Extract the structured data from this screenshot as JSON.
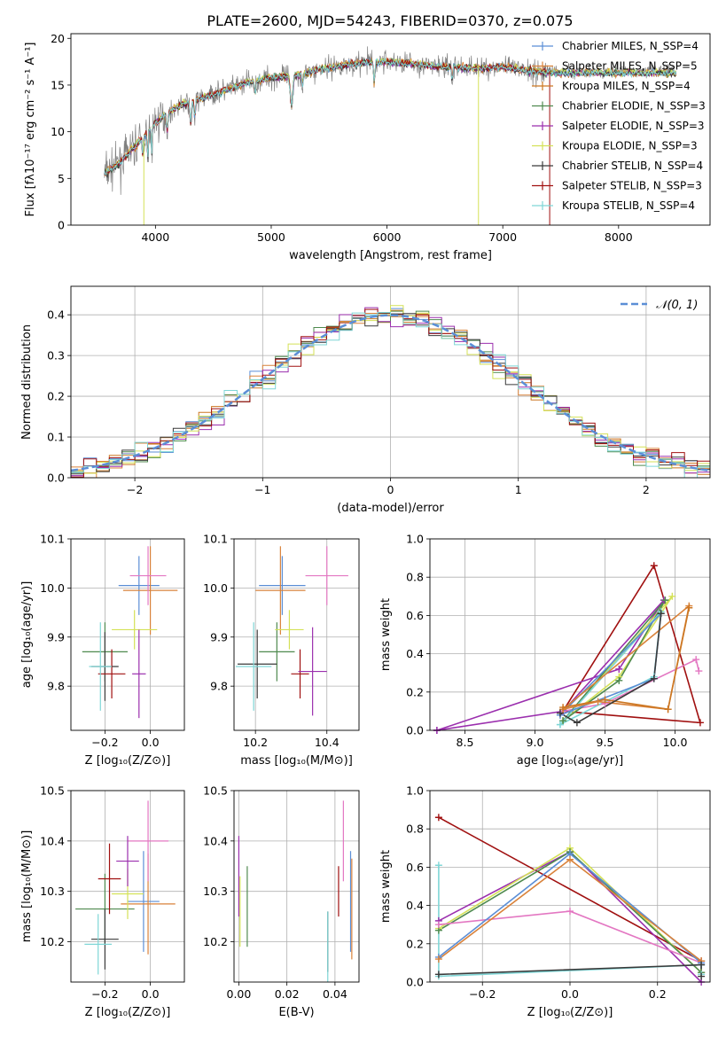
{
  "title": "PLATE=2600, MJD=54243, FIBERID=0370, z=0.075",
  "colors": {
    "Chabrier MILES": "#5b8ed6",
    "Salpeter MILES": "#d9823a",
    "Kroupa MILES": "#cc7722",
    "Chabrier ELODIE": "#4f8a4f",
    "Salpeter ELODIE": "#9b2fae",
    "Kroupa ELODIE": "#d4e157",
    "Chabrier STELIB": "#3a3a3a",
    "Salpeter STELIB": "#a01010",
    "Kroupa STELIB": "#7fd6d6",
    "data": "#808080",
    "pink": "#e377c2",
    "olive": "#bcbd22",
    "normal": "#5b8ed6"
  },
  "chart_data": [
    {
      "type": "line",
      "title": "PLATE=2600, MJD=54243, FIBERID=0370, z=0.075",
      "xlabel": "wavelength [Angstrom, rest frame]",
      "ylabel": "Flux [fλ10⁻¹⁷ erg cm⁻² s⁻¹ A⁻¹]",
      "xlim": [
        3270,
        8790
      ],
      "ylim": [
        0,
        20.5
      ],
      "xticks": [
        "4000",
        "5000",
        "6000",
        "7000",
        "8000"
      ],
      "yticks": [
        "0",
        "5",
        "10",
        "15",
        "20"
      ],
      "legend": "top-right",
      "series": [
        {
          "name": "Chabrier MILES, N_SSP=4",
          "color": "#5b8ed6"
        },
        {
          "name": "Salpeter MILES, N_SSP=5",
          "color": "#d9823a"
        },
        {
          "name": "Kroupa MILES, N_SSP=4",
          "color": "#cc7722"
        },
        {
          "name": "Chabrier ELODIE, N_SSP=3",
          "color": "#4f8a4f"
        },
        {
          "name": "Salpeter ELODIE, N_SSP=3",
          "color": "#9b2fae"
        },
        {
          "name": "Kroupa ELODIE, N_SSP=3",
          "color": "#d4e157"
        },
        {
          "name": "Chabrier STELIB, N_SSP=4",
          "color": "#3a3a3a"
        },
        {
          "name": "Salpeter STELIB, N_SSP=3",
          "color": "#a01010"
        },
        {
          "name": "Kroupa STELIB, N_SSP=4",
          "color": "#7fd6d6"
        }
      ],
      "continuum": {
        "x": [
          3560,
          3700,
          3900,
          4000,
          4200,
          4400,
          4600,
          4800,
          5000,
          5200,
          5400,
          5600,
          5800,
          6000,
          6200,
          6400,
          6600,
          6800,
          7000,
          7200,
          7400
        ],
        "y": [
          5.5,
          6.8,
          9.5,
          11.0,
          12.8,
          13.6,
          14.4,
          15.3,
          15.8,
          16.0,
          16.6,
          17.1,
          17.4,
          17.5,
          17.3,
          17.0,
          16.9,
          16.8,
          16.9,
          16.6,
          16.3
        ]
      }
    },
    {
      "type": "bar",
      "xlabel": "(data-model)/error",
      "ylabel": "Normed distribution",
      "xlim": [
        -2.5,
        2.5
      ],
      "ylim": [
        0,
        0.47
      ],
      "xticks": [
        "−2",
        "−1",
        "0",
        "1",
        "2"
      ],
      "yticks": [
        "0.0",
        "0.1",
        "0.2",
        "0.3",
        "0.4"
      ],
      "legend": "top-right",
      "legend_label": "𝒩(0, 1)",
      "bin_width": 0.1
    },
    {
      "type": "scatter",
      "xlabel": "Z [log₁₀(Z/Z⊙)]",
      "ylabel": "age  [log₁₀(age/yr)]",
      "xlim": [
        -0.35,
        0.15
      ],
      "ylim": [
        9.71,
        10.1
      ],
      "xticks": [
        "−0.2",
        "0.0"
      ],
      "yticks": [
        "9.8",
        "9.9",
        "10.0",
        "10.1"
      ],
      "points": [
        {
          "x": -0.05,
          "y": 10.005,
          "xerr": 0.09,
          "yerr": 0.06,
          "color": "#5b8ed6"
        },
        {
          "x": 0.0,
          "y": 9.995,
          "xerr": 0.12,
          "yerr": 0.09,
          "color": "#d9823a"
        },
        {
          "x": -0.01,
          "y": 10.025,
          "xerr": 0.08,
          "yerr": 0.06,
          "color": "#e377c2"
        },
        {
          "x": -0.2,
          "y": 9.87,
          "xerr": 0.1,
          "yerr": 0.06,
          "color": "#4f8a4f"
        },
        {
          "x": -0.07,
          "y": 9.915,
          "xerr": 0.1,
          "yerr": 0.04,
          "color": "#d4e157"
        },
        {
          "x": -0.2,
          "y": 9.84,
          "xerr": 0.06,
          "yerr": 0.07,
          "color": "#3a3a3a"
        },
        {
          "x": -0.17,
          "y": 9.825,
          "xerr": 0.06,
          "yerr": 0.05,
          "color": "#a01010"
        },
        {
          "x": -0.05,
          "y": 9.825,
          "xerr": 0.03,
          "yerr": 0.09,
          "color": "#9b2fae"
        },
        {
          "x": -0.22,
          "y": 9.84,
          "xerr": 0.05,
          "yerr": 0.09,
          "color": "#7fd6d6"
        }
      ]
    },
    {
      "type": "scatter",
      "xlabel": "mass [log₁₀(M/M⊙)]",
      "xlim": [
        10.14,
        10.49
      ],
      "ylim": [
        9.71,
        10.1
      ],
      "xticks": [
        "10.2",
        "10.4"
      ],
      "yticks": [
        "9.8",
        "9.9",
        "10.0",
        "10.1"
      ],
      "points": [
        {
          "x": 10.275,
          "y": 10.005,
          "xerr": 0.065,
          "yerr": 0.06,
          "color": "#5b8ed6"
        },
        {
          "x": 10.27,
          "y": 9.995,
          "xerr": 0.07,
          "yerr": 0.09,
          "color": "#d9823a"
        },
        {
          "x": 10.4,
          "y": 10.025,
          "xerr": 0.06,
          "yerr": 0.06,
          "color": "#e377c2"
        },
        {
          "x": 10.26,
          "y": 9.87,
          "xerr": 0.05,
          "yerr": 0.06,
          "color": "#4f8a4f"
        },
        {
          "x": 10.295,
          "y": 9.915,
          "xerr": 0.04,
          "yerr": 0.04,
          "color": "#d4e157"
        },
        {
          "x": 10.205,
          "y": 9.845,
          "xerr": 0.055,
          "yerr": 0.07,
          "color": "#3a3a3a"
        },
        {
          "x": 10.325,
          "y": 9.825,
          "xerr": 0.025,
          "yerr": 0.05,
          "color": "#a01010"
        },
        {
          "x": 10.36,
          "y": 9.83,
          "xerr": 0.04,
          "yerr": 0.09,
          "color": "#9b2fae"
        },
        {
          "x": 10.195,
          "y": 9.84,
          "xerr": 0.05,
          "yerr": 0.09,
          "color": "#7fd6d6"
        }
      ]
    },
    {
      "type": "line",
      "xlabel": "age  [log₁₀(age/yr)]",
      "ylabel": "mass weight",
      "xlim": [
        8.25,
        10.25
      ],
      "ylim": [
        0,
        1.0
      ],
      "xticks": [
        "8.5",
        "9.0",
        "9.5",
        "10.0"
      ],
      "yticks": [
        "0.0",
        "0.2",
        "0.4",
        "0.6",
        "0.8",
        "1.0"
      ],
      "series": [
        {
          "color": "#a01010",
          "x": [
            9.2,
            9.85,
            10.18,
            9.2
          ],
          "y": [
            0.1,
            0.86,
            0.04,
            0.1
          ]
        },
        {
          "color": "#9b2fae",
          "x": [
            8.3,
            9.6,
            9.92,
            9.2,
            8.3
          ],
          "y": [
            0.0,
            0.32,
            0.68,
            0.1,
            0.0
          ]
        },
        {
          "color": "#e377c2",
          "x": [
            9.2,
            9.5,
            10.15,
            10.17
          ],
          "y": [
            0.1,
            0.14,
            0.37,
            0.31
          ]
        },
        {
          "color": "#d4e157",
          "x": [
            9.2,
            9.6,
            9.98,
            9.2
          ],
          "y": [
            0.05,
            0.28,
            0.7,
            0.05
          ]
        },
        {
          "color": "#4f8a4f",
          "x": [
            9.2,
            9.6,
            9.93,
            9.2
          ],
          "y": [
            0.05,
            0.26,
            0.68,
            0.05
          ]
        },
        {
          "color": "#7fd6d6",
          "x": [
            9.18,
            9.85,
            9.9,
            9.18
          ],
          "y": [
            0.03,
            0.28,
            0.62,
            0.03
          ]
        },
        {
          "color": "#5b8ed6",
          "x": [
            9.18,
            9.85,
            9.9,
            9.18
          ],
          "y": [
            0.08,
            0.27,
            0.61,
            0.08
          ]
        },
        {
          "color": "#d9823a",
          "x": [
            9.2,
            9.45,
            9.95,
            10.1,
            9.2
          ],
          "y": [
            0.11,
            0.15,
            0.11,
            0.65,
            0.11
          ]
        },
        {
          "color": "#cc7722",
          "x": [
            9.2,
            9.5,
            9.95,
            10.1
          ],
          "y": [
            0.12,
            0.16,
            0.11,
            0.64
          ]
        },
        {
          "color": "#3a3a3a",
          "x": [
            9.18,
            9.3,
            9.85,
            9.9
          ],
          "y": [
            0.09,
            0.04,
            0.27,
            0.61
          ]
        }
      ]
    },
    {
      "type": "scatter",
      "xlabel": "Z [log₁₀(Z/Z⊙)]",
      "ylabel": "mass [log₁₀(M/M⊙)]",
      "xlim": [
        -0.35,
        0.15
      ],
      "ylim": [
        10.12,
        10.5
      ],
      "xticks": [
        "−0.2",
        "0.0"
      ],
      "yticks": [
        "10.2",
        "10.3",
        "10.4",
        "10.5"
      ],
      "points": [
        {
          "x": -0.03,
          "y": 10.28,
          "xerr": 0.07,
          "yerr": 0.1,
          "color": "#5b8ed6"
        },
        {
          "x": -0.01,
          "y": 10.275,
          "xerr": 0.12,
          "yerr": 0.1,
          "color": "#d9823a"
        },
        {
          "x": -0.01,
          "y": 10.4,
          "xerr": 0.09,
          "yerr": 0.08,
          "color": "#e377c2"
        },
        {
          "x": -0.2,
          "y": 10.265,
          "xerr": 0.13,
          "yerr": 0.07,
          "color": "#4f8a4f"
        },
        {
          "x": -0.1,
          "y": 10.295,
          "xerr": 0.07,
          "yerr": 0.05,
          "color": "#d4e157"
        },
        {
          "x": -0.2,
          "y": 10.205,
          "xerr": 0.06,
          "yerr": 0.06,
          "color": "#3a3a3a"
        },
        {
          "x": -0.18,
          "y": 10.325,
          "xerr": 0.05,
          "yerr": 0.07,
          "color": "#a01010"
        },
        {
          "x": -0.1,
          "y": 10.36,
          "xerr": 0.05,
          "yerr": 0.05,
          "color": "#9b2fae"
        },
        {
          "x": -0.23,
          "y": 10.195,
          "xerr": 0.06,
          "yerr": 0.06,
          "color": "#7fd6d6"
        }
      ]
    },
    {
      "type": "scatter",
      "xlabel": "E(B-V)",
      "xlim": [
        -0.002,
        0.05
      ],
      "ylim": [
        10.12,
        10.5
      ],
      "xticks": [
        "0.00",
        "0.02",
        "0.04"
      ],
      "yticks": [
        "10.2",
        "10.3",
        "10.4",
        "10.5"
      ],
      "points": [
        {
          "x": 0.0,
          "y": 10.33,
          "yerr": 0.08,
          "color": "#9b2fae"
        },
        {
          "x": 0.0005,
          "y": 10.26,
          "yerr": 0.07,
          "color": "#d4e157"
        },
        {
          "x": 0.0035,
          "y": 10.27,
          "yerr": 0.08,
          "color": "#4f8a4f"
        },
        {
          "x": 0.037,
          "y": 10.2,
          "yerr": 0.06,
          "color": "#3a3a3a"
        },
        {
          "x": 0.037,
          "y": 10.19,
          "yerr": 0.07,
          "color": "#7fd6d6"
        },
        {
          "x": 0.0415,
          "y": 10.3,
          "yerr": 0.05,
          "color": "#a01010"
        },
        {
          "x": 0.0435,
          "y": 10.4,
          "yerr": 0.08,
          "color": "#e377c2"
        },
        {
          "x": 0.0465,
          "y": 10.28,
          "yerr": 0.1,
          "color": "#5b8ed6"
        },
        {
          "x": 0.047,
          "y": 10.265,
          "yerr": 0.1,
          "color": "#d9823a"
        }
      ]
    },
    {
      "type": "line",
      "xlabel": "Z [log₁₀(Z/Z⊙)]",
      "ylabel": "mass weight",
      "xlim": [
        -0.32,
        0.32
      ],
      "ylim": [
        0,
        1.0
      ],
      "xticks": [
        "−0.2",
        "0.0",
        "0.2"
      ],
      "yticks": [
        "0.0",
        "0.2",
        "0.4",
        "0.6",
        "0.8",
        "1.0"
      ],
      "series": [
        {
          "color": "#a01010",
          "x": [
            -0.3,
            0.3,
            0.3
          ],
          "y": [
            0.86,
            0.11,
            0.05
          ]
        },
        {
          "color": "#9b2fae",
          "x": [
            -0.3,
            0.0,
            0.3
          ],
          "y": [
            0.32,
            0.68,
            0.0
          ]
        },
        {
          "color": "#d4e157",
          "x": [
            -0.3,
            0.0,
            0.3
          ],
          "y": [
            0.28,
            0.7,
            0.05
          ]
        },
        {
          "color": "#4f8a4f",
          "x": [
            -0.3,
            0.0,
            0.3
          ],
          "y": [
            0.27,
            0.68,
            0.05
          ]
        },
        {
          "color": "#e377c2",
          "x": [
            -0.3,
            0.0,
            0.3
          ],
          "y": [
            0.3,
            0.37,
            0.1
          ]
        },
        {
          "color": "#5b8ed6",
          "x": [
            -0.3,
            0.0,
            0.3
          ],
          "y": [
            0.13,
            0.67,
            0.1
          ]
        },
        {
          "color": "#d9823a",
          "x": [
            -0.3,
            0.0,
            0.3
          ],
          "y": [
            0.12,
            0.64,
            0.11
          ]
        },
        {
          "color": "#7fd6d6",
          "x": [
            -0.3,
            -0.3,
            0.3,
            0.3
          ],
          "y": [
            0.61,
            0.03,
            0.09,
            0.04
          ]
        },
        {
          "color": "#3a3a3a",
          "x": [
            -0.3,
            0.3,
            0.3
          ],
          "y": [
            0.04,
            0.09,
            0.03
          ]
        }
      ]
    }
  ]
}
